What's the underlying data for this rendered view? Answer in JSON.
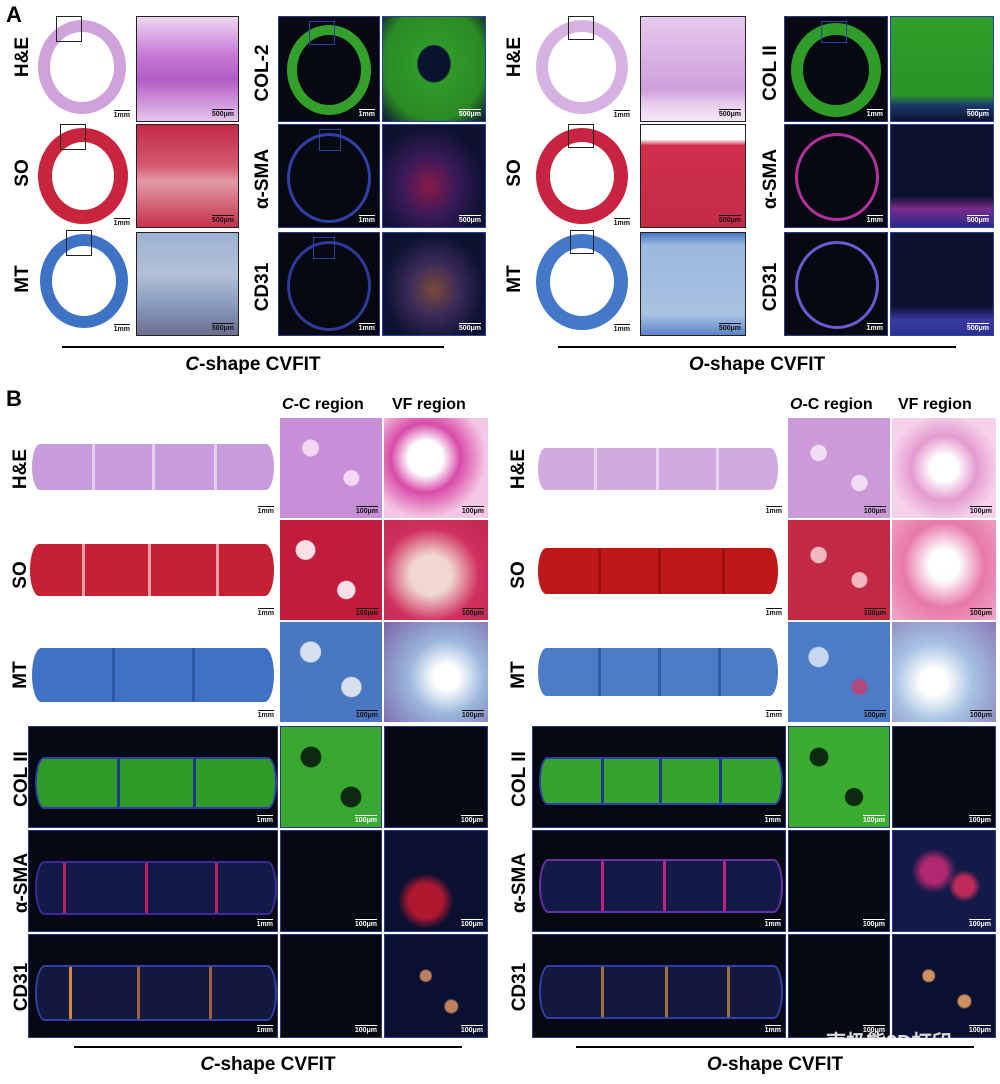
{
  "panelA": {
    "letter": "A",
    "left_rows": [
      "H&E",
      "SO",
      "MT"
    ],
    "left_if_rows": [
      "COL-2",
      "α-SMA",
      "CD31"
    ],
    "right_rows": [
      "H&E",
      "SO",
      "MT"
    ],
    "right_if_rows": [
      "COL II",
      "α-SMA",
      "CD31"
    ],
    "scale_overview": "1mm",
    "scale_zoom": "500μm",
    "left_caption_italic": "C",
    "left_caption_rest": "-shape CVFIT",
    "right_caption_italic": "O",
    "right_caption_rest": "-shape CVFIT"
  },
  "panelB": {
    "letter": "B",
    "rows": [
      "H&E",
      "SO",
      "MT",
      "COL II",
      "α-SMA",
      "CD31"
    ],
    "left_col1_italic": "C",
    "left_col1_rest": "-C region",
    "left_col2": "VF region",
    "right_col1_italic": "O",
    "right_col1_rest": "-C region",
    "right_col2": "VF region",
    "scale_overview": "1mm",
    "scale_zoom": "100μm",
    "left_caption_italic": "C",
    "left_caption_rest": "-shape CVFIT",
    "right_caption_italic": "O",
    "right_caption_rest": "-shape CVFIT"
  },
  "watermark": "南极熊3D打印",
  "stain_colors": {
    "he": "#c89ad8",
    "so": "#c42040",
    "mt": "#3f74c4",
    "col2": "#2fa82a",
    "sma": "#c0306a",
    "cd31": "#d4864a",
    "dapi": "#2a38a0"
  }
}
